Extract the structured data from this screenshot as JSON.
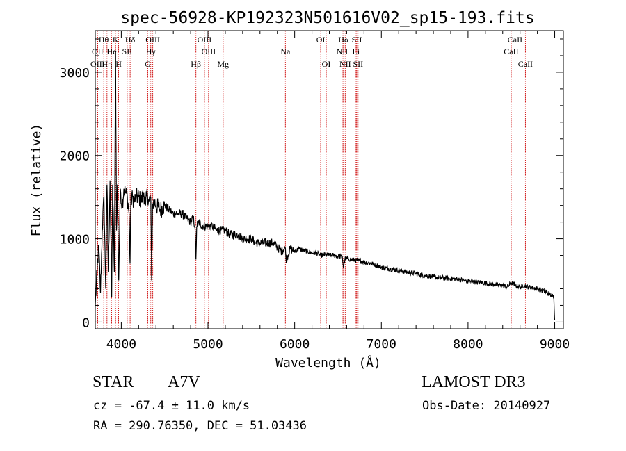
{
  "chart_data": {
    "type": "line",
    "title": "spec-56928-KP192323N501616V02_sp15-193.fits",
    "xlabel": "Wavelength (Å)",
    "ylabel": "Flux (relative)",
    "xlim": [
      3700,
      9100
    ],
    "ylim": [
      -80,
      3500
    ],
    "xticks": [
      4000,
      5000,
      6000,
      7000,
      8000,
      9000
    ],
    "yticks": [
      0,
      1000,
      2000,
      3000
    ],
    "grid": false,
    "series": [
      {
        "name": "flux",
        "x": [
          3700,
          3720,
          3740,
          3760,
          3780,
          3800,
          3820,
          3835,
          3850,
          3870,
          3889,
          3900,
          3920,
          3934,
          3945,
          3955,
          3970,
          3990,
          4010,
          4030,
          4050,
          4070,
          4090,
          4101,
          4110,
          4130,
          4150,
          4170,
          4200,
          4230,
          4260,
          4280,
          4300,
          4320,
          4340,
          4350,
          4360,
          4380,
          4400,
          4450,
          4500,
          4550,
          4600,
          4650,
          4700,
          4750,
          4800,
          4830,
          4850,
          4861,
          4870,
          4890,
          4950,
          5000,
          5050,
          5100,
          5150,
          5200,
          5250,
          5300,
          5350,
          5400,
          5450,
          5500,
          5550,
          5600,
          5650,
          5700,
          5750,
          5800,
          5850,
          5890,
          5900,
          5950,
          6000,
          6050,
          6100,
          6150,
          6200,
          6250,
          6300,
          6350,
          6400,
          6450,
          6500,
          6550,
          6563,
          6580,
          6620,
          6660,
          6700,
          6750,
          6800,
          6850,
          6900,
          6950,
          7000,
          7100,
          7200,
          7300,
          7400,
          7500,
          7600,
          7700,
          7800,
          7900,
          8000,
          8100,
          8200,
          8300,
          8400,
          8450,
          8500,
          8550,
          8600,
          8650,
          8700,
          8750,
          8800,
          8850,
          8900,
          8950,
          8990,
          9000
        ],
        "values": [
          200,
          600,
          900,
          350,
          1100,
          1500,
          400,
          1650,
          600,
          1700,
          300,
          1650,
          600,
          3250,
          1100,
          1650,
          500,
          1600,
          1400,
          1600,
          1550,
          1500,
          1300,
          700,
          1450,
          1500,
          1450,
          1500,
          1500,
          1450,
          1550,
          1400,
          1550,
          1450,
          1500,
          500,
          1400,
          1450,
          1400,
          1350,
          1400,
          1350,
          1300,
          1300,
          1300,
          1250,
          1200,
          1250,
          1150,
          750,
          1150,
          1200,
          1150,
          1150,
          1150,
          1100,
          1100,
          1100,
          1050,
          1050,
          1050,
          1000,
          1000,
          1000,
          950,
          950,
          950,
          950,
          950,
          900,
          850,
          900,
          750,
          880,
          850,
          880,
          860,
          850,
          830,
          830,
          800,
          810,
          800,
          800,
          790,
          780,
          650,
          760,
          760,
          750,
          740,
          740,
          720,
          710,
          700,
          680,
          660,
          640,
          620,
          600,
          580,
          560,
          540,
          530,
          520,
          510,
          490,
          480,
          470,
          450,
          440,
          420,
          470,
          440,
          420,
          440,
          420,
          410,
          400,
          380,
          360,
          330,
          300,
          20
        ]
      }
    ],
    "lines": [
      {
        "label": "Hθ",
        "x": 3797,
        "row": 0
      },
      {
        "label": "K",
        "x": 3934,
        "row": 0
      },
      {
        "label": "Hδ",
        "x": 4102,
        "row": 0
      },
      {
        "label": "OIII",
        "x": 4363,
        "row": 0
      },
      {
        "label": "OIII",
        "x": 4959,
        "row": 0
      },
      {
        "label": "OI",
        "x": 6300,
        "row": 0
      },
      {
        "label": "Hα",
        "x": 6563,
        "row": 0
      },
      {
        "label": "SII",
        "x": 6717,
        "row": 0
      },
      {
        "label": "CaII",
        "x": 8542,
        "row": 0
      },
      {
        "label": "OII",
        "x": 3727,
        "row": 1
      },
      {
        "label": "He",
        "x": 3889,
        "row": 1
      },
      {
        "label": "SII",
        "x": 4068,
        "row": 1
      },
      {
        "label": "Hγ",
        "x": 4340,
        "row": 1
      },
      {
        "label": "OIII",
        "x": 5007,
        "row": 1
      },
      {
        "label": "Na",
        "x": 5893,
        "row": 1
      },
      {
        "label": "NII",
        "x": 6548,
        "row": 1
      },
      {
        "label": "Li",
        "x": 6708,
        "row": 1
      },
      {
        "label": "CaII",
        "x": 8498,
        "row": 1
      },
      {
        "label": "OIII",
        "x": 3727,
        "row": 2
      },
      {
        "label": "Hη",
        "x": 3835,
        "row": 2
      },
      {
        "label": "H",
        "x": 3969,
        "row": 2
      },
      {
        "label": "G",
        "x": 4305,
        "row": 2
      },
      {
        "label": "Hβ",
        "x": 4861,
        "row": 2
      },
      {
        "label": "Mg",
        "x": 5175,
        "row": 2
      },
      {
        "label": "OI",
        "x": 6364,
        "row": 2
      },
      {
        "label": "NII",
        "x": 6583,
        "row": 2
      },
      {
        "label": "SII",
        "x": 6731,
        "row": 2
      },
      {
        "label": "CaII",
        "x": 8662,
        "row": 2
      }
    ]
  },
  "info": {
    "object_class": "STAR",
    "subclass": "A7V",
    "survey": "LAMOST DR3",
    "cz": "cz = -67.4 ± 11.0 km/s",
    "obs_date": "Obs-Date: 20140927",
    "coords": "RA = 290.76350, DEC =  51.03436"
  },
  "colors": {
    "spectrum": "#000000",
    "line_marker": "#cc0000",
    "axis": "#000000"
  }
}
